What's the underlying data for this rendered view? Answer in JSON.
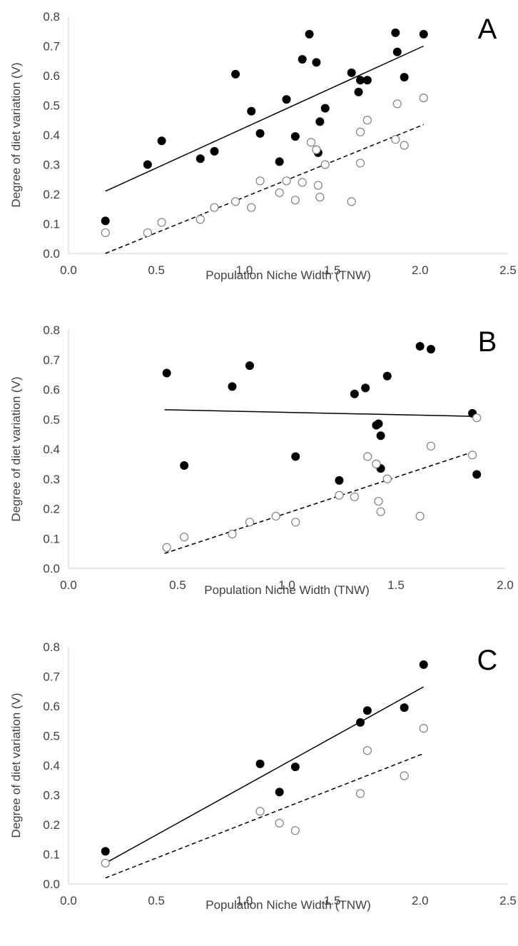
{
  "style": {
    "filled_color": "#000000",
    "open_stroke": "#7f7f7f",
    "axis_color": "#d9d9d9",
    "text_color": "#404040"
  },
  "chart_data": [
    {
      "type": "scatter",
      "panel_label": "A",
      "xlabel": "Population Niche Width (TNW)",
      "ylabel": "Degree of diet variation (V)",
      "xlim": [
        0,
        2.5
      ],
      "ylim": [
        0,
        0.8
      ],
      "xticks": [
        "0.0",
        "0.5",
        "1.0",
        "1.5",
        "2.0",
        "2.5"
      ],
      "yticks": [
        "0.0",
        "0.1",
        "0.2",
        "0.3",
        "0.4",
        "0.5",
        "0.6",
        "0.7",
        "0.8"
      ],
      "grid": false,
      "series": [
        {
          "marker": "filled",
          "points": [
            [
              0.21,
              0.11
            ],
            [
              0.45,
              0.3
            ],
            [
              0.53,
              0.38
            ],
            [
              0.75,
              0.32
            ],
            [
              0.83,
              0.345
            ],
            [
              0.95,
              0.605
            ],
            [
              1.04,
              0.48
            ],
            [
              1.09,
              0.405
            ],
            [
              1.2,
              0.31
            ],
            [
              1.24,
              0.52
            ],
            [
              1.29,
              0.395
            ],
            [
              1.33,
              0.655
            ],
            [
              1.37,
              0.74
            ],
            [
              1.41,
              0.645
            ],
            [
              1.42,
              0.34
            ],
            [
              1.43,
              0.445
            ],
            [
              1.46,
              0.49
            ],
            [
              1.61,
              0.61
            ],
            [
              1.65,
              0.545
            ],
            [
              1.66,
              0.585
            ],
            [
              1.7,
              0.585
            ],
            [
              1.86,
              0.745
            ],
            [
              1.87,
              0.68
            ],
            [
              1.91,
              0.595
            ],
            [
              2.02,
              0.74
            ]
          ],
          "trend": {
            "style": "solid",
            "x": [
              0.21,
              2.02
            ],
            "y": [
              0.21,
              0.7
            ]
          }
        },
        {
          "marker": "open",
          "points": [
            [
              0.21,
              0.07
            ],
            [
              0.45,
              0.07
            ],
            [
              0.53,
              0.105
            ],
            [
              0.75,
              0.115
            ],
            [
              0.83,
              0.155
            ],
            [
              0.95,
              0.175
            ],
            [
              1.04,
              0.155
            ],
            [
              1.09,
              0.245
            ],
            [
              1.2,
              0.205
            ],
            [
              1.24,
              0.245
            ],
            [
              1.29,
              0.18
            ],
            [
              1.33,
              0.24
            ],
            [
              1.38,
              0.375
            ],
            [
              1.41,
              0.35
            ],
            [
              1.42,
              0.23
            ],
            [
              1.43,
              0.19
            ],
            [
              1.46,
              0.3
            ],
            [
              1.61,
              0.175
            ],
            [
              1.66,
              0.41
            ],
            [
              1.66,
              0.305
            ],
            [
              1.7,
              0.45
            ],
            [
              1.86,
              0.385
            ],
            [
              1.87,
              0.505
            ],
            [
              1.91,
              0.365
            ],
            [
              2.02,
              0.525
            ]
          ],
          "trend": {
            "style": "dashed",
            "x": [
              0.21,
              2.02
            ],
            "y": [
              0.0,
              0.435
            ]
          }
        }
      ]
    },
    {
      "type": "scatter",
      "panel_label": "B",
      "xlabel": "Population Niche Width (TNW)",
      "ylabel": "Degree of diet variation (V)",
      "xlim": [
        0,
        2.0
      ],
      "ylim": [
        0,
        0.8
      ],
      "xticks": [
        "0.0",
        "0.5",
        "1.0",
        "1.5",
        "2.0"
      ],
      "yticks": [
        "0.0",
        "0.1",
        "0.2",
        "0.3",
        "0.4",
        "0.5",
        "0.6",
        "0.7",
        "0.8"
      ],
      "grid": false,
      "series": [
        {
          "marker": "filled",
          "points": [
            [
              0.45,
              0.655
            ],
            [
              0.53,
              0.345
            ],
            [
              0.75,
              0.61
            ],
            [
              0.83,
              0.68
            ],
            [
              1.04,
              0.375
            ],
            [
              1.24,
              0.295
            ],
            [
              1.31,
              0.585
            ],
            [
              1.36,
              0.605
            ],
            [
              1.41,
              0.48
            ],
            [
              1.42,
              0.485
            ],
            [
              1.43,
              0.445
            ],
            [
              1.43,
              0.335
            ],
            [
              1.46,
              0.645
            ],
            [
              1.61,
              0.745
            ],
            [
              1.66,
              0.735
            ],
            [
              1.85,
              0.52
            ],
            [
              1.87,
              0.315
            ]
          ],
          "trend": {
            "style": "solid",
            "x": [
              0.44,
              1.85
            ],
            "y": [
              0.532,
              0.51
            ]
          }
        },
        {
          "marker": "open",
          "points": [
            [
              0.45,
              0.07
            ],
            [
              0.53,
              0.105
            ],
            [
              0.75,
              0.115
            ],
            [
              0.83,
              0.155
            ],
            [
              0.95,
              0.175
            ],
            [
              1.04,
              0.155
            ],
            [
              1.24,
              0.245
            ],
            [
              1.31,
              0.24
            ],
            [
              1.37,
              0.375
            ],
            [
              1.41,
              0.35
            ],
            [
              1.42,
              0.225
            ],
            [
              1.43,
              0.19
            ],
            [
              1.46,
              0.3
            ],
            [
              1.61,
              0.175
            ],
            [
              1.66,
              0.41
            ],
            [
              1.85,
              0.38
            ],
            [
              1.87,
              0.505
            ]
          ],
          "trend": {
            "style": "dashed",
            "x": [
              0.44,
              1.85
            ],
            "y": [
              0.05,
              0.39
            ]
          }
        }
      ]
    },
    {
      "type": "scatter",
      "panel_label": "C",
      "xlabel": "Population Niche Width (TNW)",
      "ylabel": "Degree of diet variation (V)",
      "xlim": [
        0,
        2.5
      ],
      "ylim": [
        0,
        0.8
      ],
      "xticks": [
        "0.0",
        "0.5",
        "1.0",
        "1.5",
        "2.0",
        "2.5"
      ],
      "yticks": [
        "0.0",
        "0.1",
        "0.2",
        "0.3",
        "0.4",
        "0.5",
        "0.6",
        "0.7",
        "0.8"
      ],
      "grid": false,
      "series": [
        {
          "marker": "filled",
          "points": [
            [
              0.21,
              0.11
            ],
            [
              1.09,
              0.405
            ],
            [
              1.2,
              0.31
            ],
            [
              1.29,
              0.395
            ],
            [
              1.66,
              0.545
            ],
            [
              1.7,
              0.585
            ],
            [
              1.91,
              0.595
            ],
            [
              2.02,
              0.74
            ]
          ],
          "trend": {
            "style": "solid",
            "x": [
              0.21,
              2.02
            ],
            "y": [
              0.07,
              0.665
            ]
          }
        },
        {
          "marker": "open",
          "points": [
            [
              0.21,
              0.07
            ],
            [
              1.09,
              0.245
            ],
            [
              1.2,
              0.205
            ],
            [
              1.29,
              0.18
            ],
            [
              1.66,
              0.305
            ],
            [
              1.7,
              0.45
            ],
            [
              1.91,
              0.365
            ],
            [
              2.02,
              0.525
            ]
          ],
          "trend": {
            "style": "dashed",
            "x": [
              0.21,
              2.02
            ],
            "y": [
              0.02,
              0.44
            ]
          }
        }
      ]
    }
  ]
}
